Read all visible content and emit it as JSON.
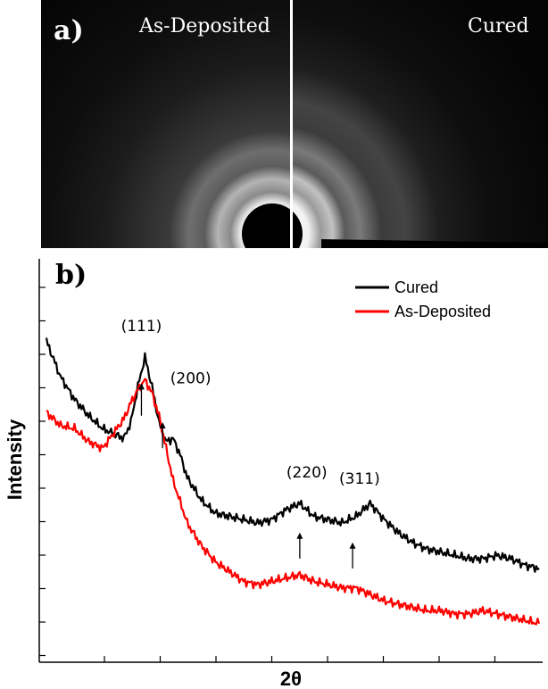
{
  "panel_a": {
    "label": "a)",
    "left_label": "As-Deposited",
    "right_label": "Cured"
  },
  "chart_data": {
    "type": "line",
    "panel_label": "b)",
    "xlabel": "2θ",
    "ylabel": "Intensity",
    "xlim": [
      20,
      90
    ],
    "ylim": [
      0,
      100
    ],
    "grid": false,
    "legend_position": "top-right",
    "series": [
      {
        "name": "Cured",
        "color": "#000000",
        "x": [
          20,
          22,
          24,
          26,
          28,
          30,
          31,
          32,
          33,
          34,
          35,
          36,
          37,
          38,
          39,
          40,
          42,
          44,
          46,
          48,
          50,
          52,
          54,
          56,
          58,
          60,
          62,
          64,
          66,
          68,
          70,
          72,
          74,
          76,
          78,
          80,
          82,
          84,
          86,
          88,
          90
        ],
        "values": [
          89,
          78,
          71,
          66,
          62,
          60,
          59,
          64,
          75,
          84,
          75,
          64,
          58,
          59,
          54,
          47,
          40,
          36,
          35,
          34,
          33,
          34,
          37,
          39,
          35,
          34,
          33,
          35,
          39,
          34,
          30,
          27,
          25,
          24,
          23,
          22,
          22,
          23,
          22,
          20,
          19
        ]
      },
      {
        "name": "As-Deposited",
        "color": "#ff0000",
        "x": [
          20,
          22,
          24,
          26,
          28,
          30,
          31,
          32,
          33,
          34,
          35,
          36,
          37,
          38,
          40,
          42,
          44,
          46,
          48,
          50,
          52,
          54,
          56,
          58,
          60,
          62,
          64,
          66,
          68,
          70,
          72,
          74,
          76,
          78,
          80,
          82,
          84,
          86,
          88,
          90
        ],
        "values": [
          67,
          63,
          62,
          58,
          56,
          62,
          65,
          70,
          74,
          77,
          73,
          66,
          56,
          46,
          33,
          26,
          21,
          18,
          15,
          14,
          15,
          16,
          17,
          15,
          14,
          13,
          13,
          11,
          9,
          8,
          7,
          6,
          6,
          5,
          5,
          6,
          5,
          4,
          3,
          2
        ]
      }
    ],
    "annotations": [
      {
        "label": "(111)",
        "x": 33.5,
        "y": 92,
        "arrow_x": 33.5,
        "arrow_from": 66,
        "arrow_to": 76
      },
      {
        "label": "(200)",
        "x": 40.5,
        "y": 76,
        "arrow_x": 36.5,
        "arrow_from": 56,
        "arrow_to": 64
      },
      {
        "label": "(220)",
        "x": 57,
        "y": 47,
        "arrow_x": 56,
        "arrow_from": 22,
        "arrow_to": 30
      },
      {
        "label": "(311)",
        "x": 64.5,
        "y": 45,
        "arrow_x": 63.5,
        "arrow_from": 19,
        "arrow_to": 27
      }
    ]
  }
}
